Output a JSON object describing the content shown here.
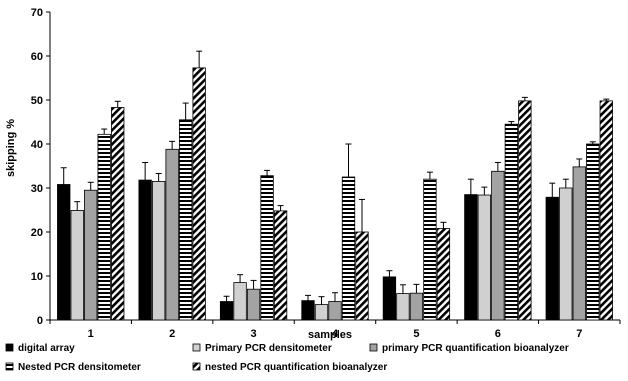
{
  "chart_data": {
    "type": "bar",
    "categories": [
      "1",
      "2",
      "3",
      "4",
      "5",
      "6",
      "7"
    ],
    "xlabel": "samples",
    "ylabel": "skipping %",
    "ylim": [
      0,
      70
    ],
    "yticks": [
      0,
      10,
      20,
      30,
      40,
      50,
      60,
      70
    ],
    "grid": false,
    "legend_placement": "bottom",
    "series": [
      {
        "name": "digital array",
        "pattern": "solid-black",
        "values": [
          30.8,
          31.8,
          4.2,
          4.4,
          9.8,
          28.5,
          27.9
        ],
        "errors": [
          3.8,
          4.0,
          1.2,
          1.2,
          1.4,
          3.5,
          3.2
        ]
      },
      {
        "name": "Primary PCR densitometer",
        "pattern": "light-gray",
        "values": [
          24.9,
          31.5,
          8.5,
          3.5,
          6.0,
          28.4,
          30.0
        ],
        "errors": [
          2.0,
          1.8,
          1.8,
          1.8,
          2.0,
          1.8,
          2.0
        ]
      },
      {
        "name": "primary PCR quantification bioanalyzer",
        "pattern": "medium-gray",
        "values": [
          29.5,
          38.8,
          7.0,
          4.2,
          6.1,
          33.8,
          34.8
        ],
        "errors": [
          1.8,
          1.8,
          2.0,
          2.0,
          2.0,
          2.0,
          1.8
        ]
      },
      {
        "name": "Nested PCR densitometer",
        "pattern": "horizontal-stripes",
        "values": [
          42.2,
          45.5,
          32.8,
          32.5,
          32.0,
          44.5,
          40.0
        ],
        "errors": [
          1.2,
          3.8,
          1.2,
          7.5,
          1.6,
          0.6,
          0.5
        ]
      },
      {
        "name": "nested PCR quantification bioanalyzer",
        "pattern": "diagonal-stripes",
        "values": [
          48.3,
          57.3,
          24.8,
          20.0,
          20.8,
          49.8,
          49.8
        ],
        "errors": [
          1.4,
          3.8,
          1.2,
          7.4,
          1.4,
          0.8,
          0.4
        ]
      }
    ]
  }
}
